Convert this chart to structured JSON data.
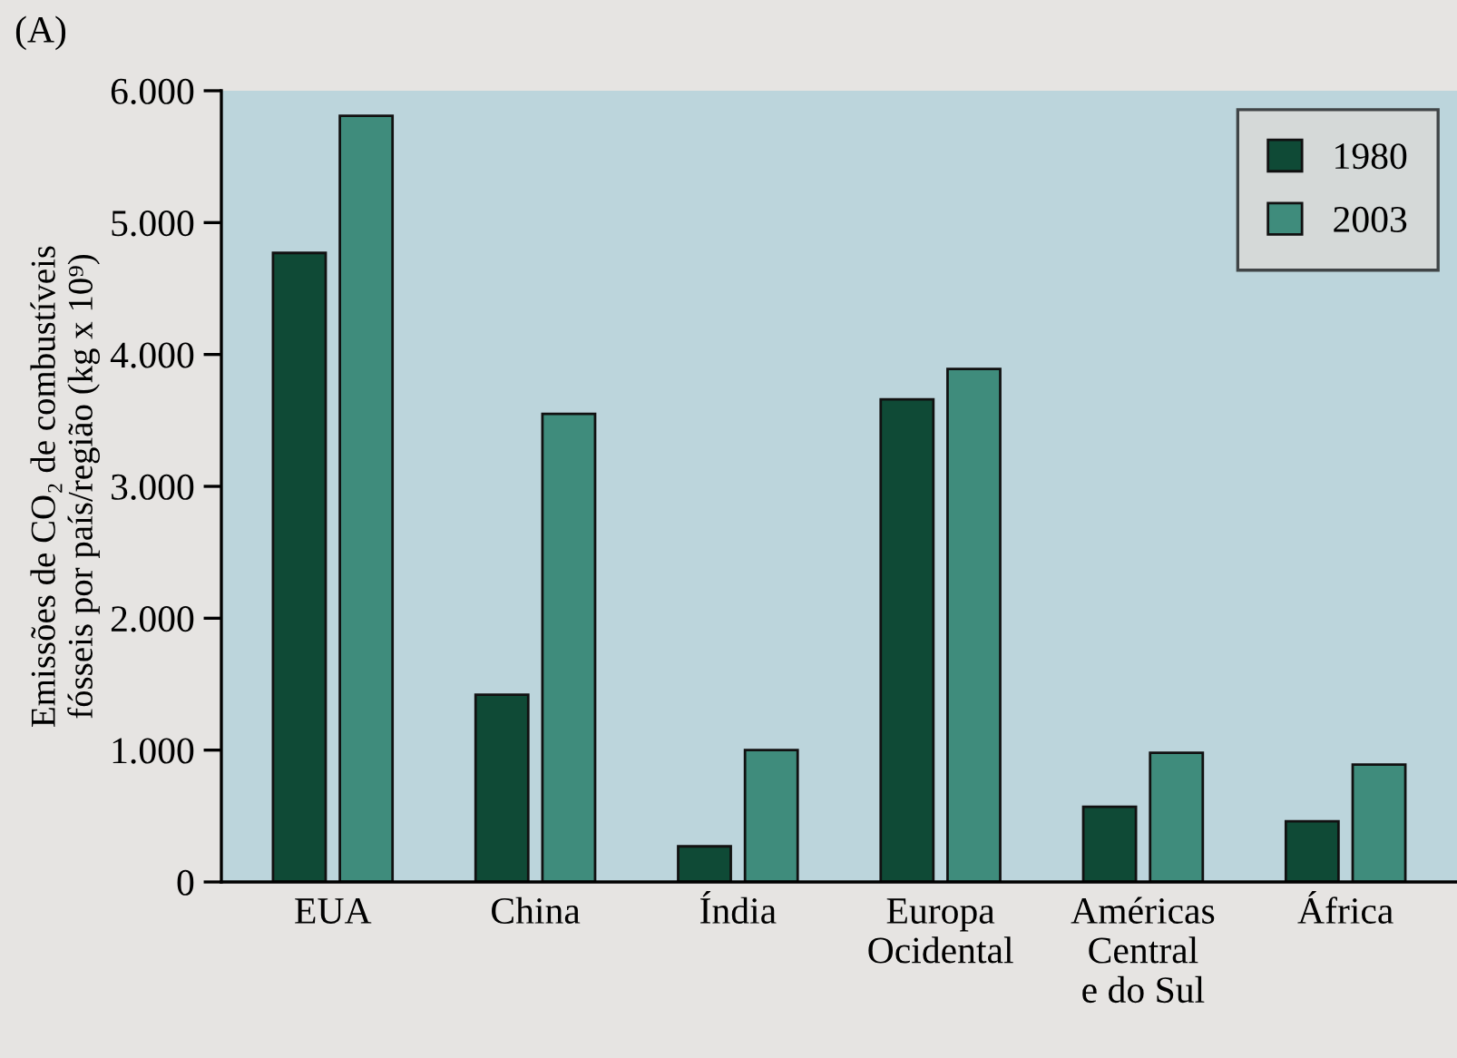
{
  "chart_data": {
    "type": "bar",
    "categories": [
      "EUA",
      "China",
      "Índia",
      "Europa\nOcidental",
      "Américas\nCentral\ne do Sul",
      "África"
    ],
    "series": [
      {
        "name": "1980",
        "color": "#0f4a36",
        "values": [
          4770,
          1420,
          270,
          3660,
          570,
          460
        ]
      },
      {
        "name": "2003",
        "color": "#3f8c7c",
        "values": [
          5810,
          3550,
          1000,
          3890,
          980,
          890
        ]
      }
    ],
    "ylabel": "Emissões de CO₂ de combustíveis\nfósseis por país/região (kg x 10⁹)",
    "ylim": [
      0,
      6000
    ],
    "yticks": [
      0,
      {
        "value": 1000,
        "label": "1.000"
      },
      {
        "value": 2000,
        "label": "2.000"
      },
      {
        "value": 3000,
        "label": "3.000"
      },
      {
        "value": 4000,
        "label": "4.000"
      },
      {
        "value": 5000,
        "label": "5.000"
      },
      {
        "value": 6000,
        "label": "6.000"
      }
    ],
    "annotations": [
      "(A)"
    ],
    "legend": "top right",
    "grid": false
  }
}
